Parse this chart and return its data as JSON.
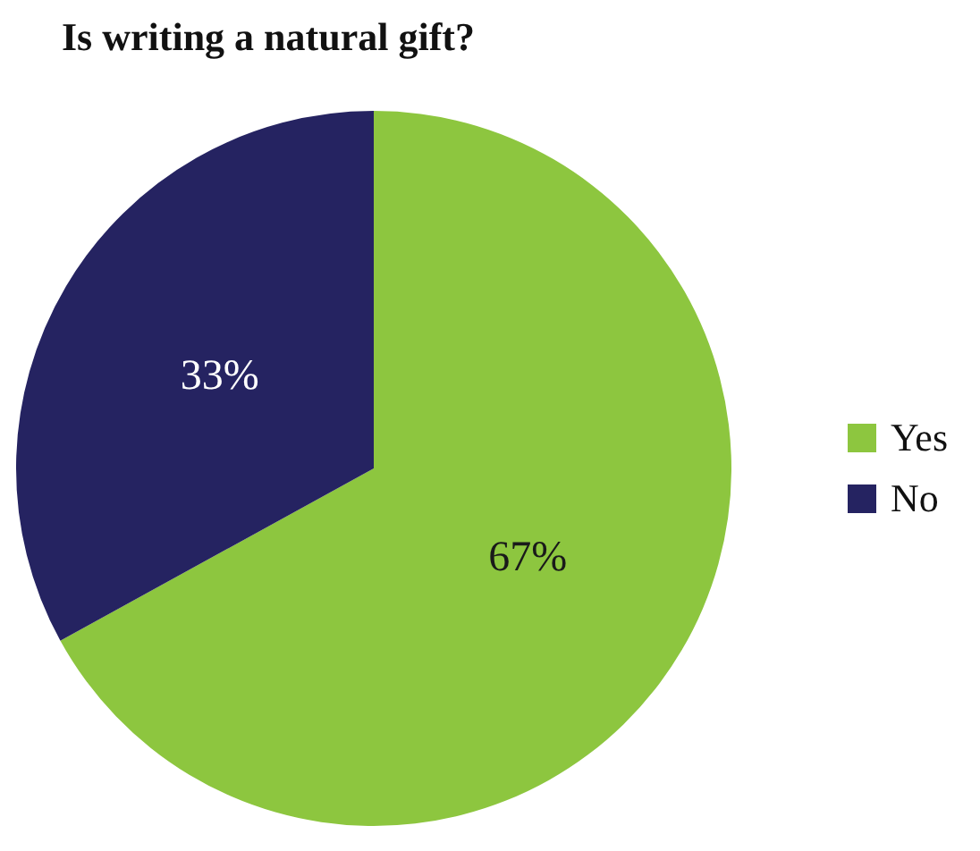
{
  "chart_data": {
    "type": "pie",
    "title": "Is writing a natural gift?",
    "categories": [
      "Yes",
      "No"
    ],
    "values": [
      67,
      33
    ],
    "colors": [
      "#8dc63f",
      "#252361"
    ],
    "value_labels": [
      "67%",
      "33%"
    ],
    "legend": "right"
  }
}
